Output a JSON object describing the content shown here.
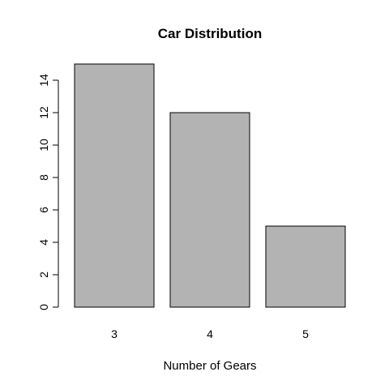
{
  "chart_data": {
    "type": "bar",
    "title": "Car Distribution",
    "xlabel": "Number of Gears",
    "ylabel": "",
    "categories": [
      "3",
      "4",
      "5"
    ],
    "values": [
      15,
      12,
      5
    ],
    "ylim": [
      0,
      15
    ],
    "y_ticks": [
      0,
      2,
      4,
      6,
      8,
      10,
      12,
      14
    ],
    "grid": false,
    "legend": "none",
    "bar_fill": "#b3b3b3",
    "bar_stroke": "#000000"
  }
}
